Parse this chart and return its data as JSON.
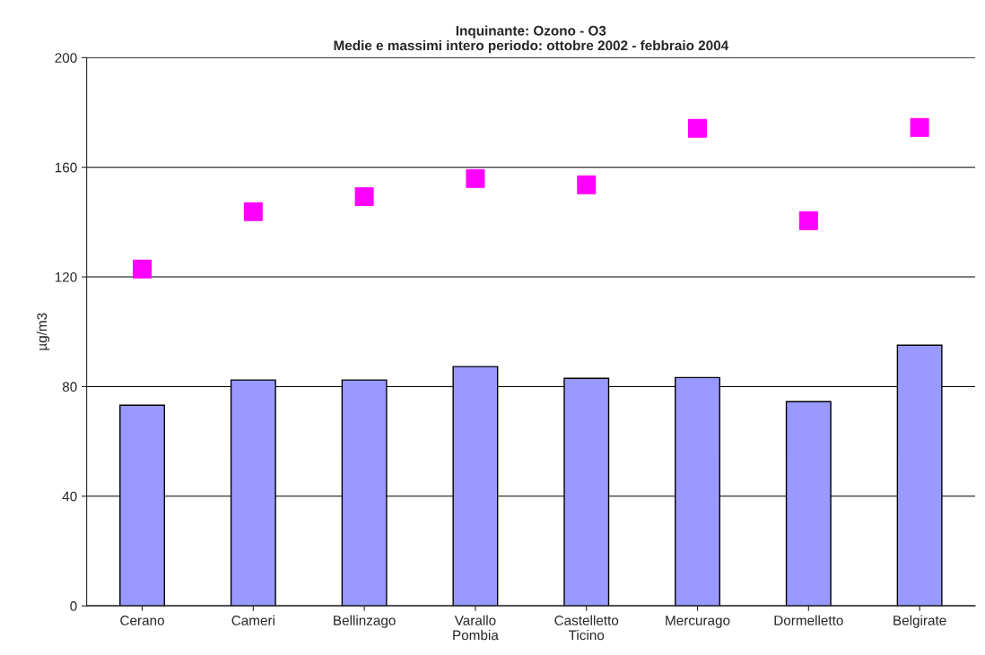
{
  "chart_data": {
    "type": "bar",
    "title": "Inquinante: Ozono - O3\nMedie e massimi intero periodo: ottobre 2002 - febbraio 2004",
    "ylabel": "µg/m3",
    "categories": [
      "Cerano",
      "Cameri",
      "Bellinzago",
      "Varallo\nPombia",
      "Castelletto\nTicino",
      "Mercurago",
      "Dormelletto",
      "Belgirate"
    ],
    "series": [
      {
        "type": "bar",
        "color": "#9999ff",
        "values": [
          73.2,
          82.4,
          82.4,
          87.3,
          83.0,
          83.3,
          74.5,
          95.1
        ]
      },
      {
        "type": "scatter",
        "color": "#ff00ff",
        "marker": "square",
        "values": [
          122.9,
          143.8,
          149.3,
          155.9,
          153.6,
          174.2,
          140.5,
          174.5
        ]
      }
    ],
    "ylim": [
      0,
      200
    ],
    "yticks": [
      0,
      40,
      80,
      120,
      160,
      200
    ],
    "grid": "y",
    "legend": false
  }
}
